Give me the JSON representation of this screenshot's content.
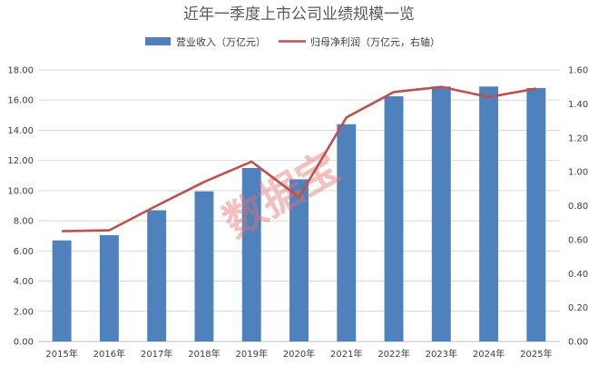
{
  "chart_data": {
    "type": "bar",
    "title": "近年一季度上市公司业绩规模一览",
    "categories": [
      "2015年",
      "2016年",
      "2017年",
      "2018年",
      "2019年",
      "2020年",
      "2021年",
      "2022年",
      "2023年",
      "2024年",
      "2025年"
    ],
    "series": [
      {
        "name": "营业收入（万亿元）",
        "type": "bar",
        "axis": "left",
        "color": "#4f81bd",
        "values": [
          6.7,
          7.05,
          8.7,
          9.95,
          11.5,
          10.75,
          14.4,
          16.25,
          16.9,
          16.9,
          16.8
        ]
      },
      {
        "name": "归母净利润（万亿元，右轴）",
        "type": "line",
        "axis": "right",
        "color": "#c0504d",
        "values": [
          0.65,
          0.655,
          0.8,
          0.94,
          1.06,
          0.85,
          1.32,
          1.47,
          1.5,
          1.44,
          1.49
        ]
      }
    ],
    "y_left": {
      "ylim": [
        0,
        18
      ],
      "ticks": [
        "0.00",
        "2.00",
        "4.00",
        "6.00",
        "8.00",
        "10.00",
        "12.00",
        "14.00",
        "16.00",
        "18.00"
      ]
    },
    "y_right": {
      "ylim": [
        0,
        1.6
      ],
      "ticks": [
        "0.00",
        "0.20",
        "0.40",
        "0.60",
        "0.80",
        "1.00",
        "1.20",
        "1.40",
        "1.60"
      ]
    },
    "grid": true,
    "legend_position": "top-center",
    "watermark": "数据宝"
  }
}
